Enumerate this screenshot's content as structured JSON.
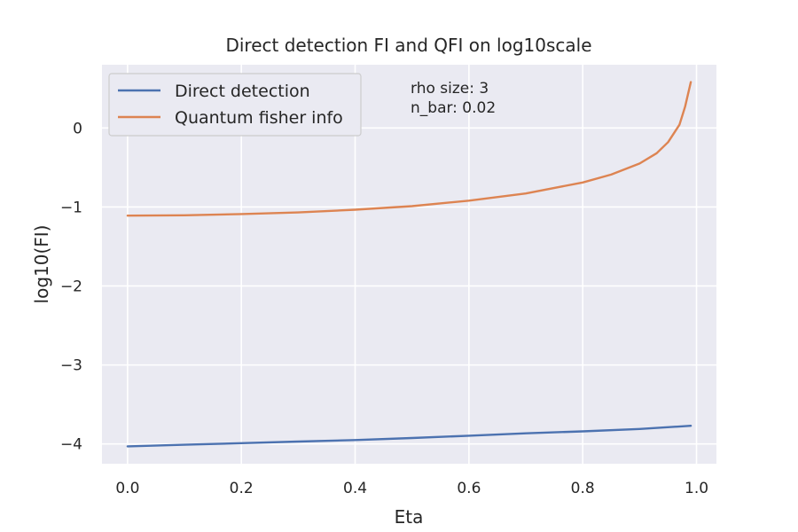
{
  "chart_data": {
    "type": "line",
    "title": "Direct detection FI and QFI on log10scale",
    "xlabel": "Eta",
    "ylabel": "log10(FI)",
    "xlim": [
      -0.045,
      1.035
    ],
    "ylim": [
      -4.25,
      0.8
    ],
    "x_ticks": [
      0.0,
      0.2,
      0.4,
      0.6,
      0.8,
      1.0
    ],
    "x_tick_labels": [
      "0.0",
      "0.2",
      "0.4",
      "0.6",
      "0.8",
      "1.0"
    ],
    "y_ticks": [
      0,
      -1,
      -2,
      -3,
      -4
    ],
    "y_tick_labels": [
      "0",
      "−1",
      "−2",
      "−3",
      "−4"
    ],
    "grid": true,
    "legend_position": "top-left",
    "background_color": "#eaeaf2",
    "annotations": [
      "rho size: 3",
      "n_bar: 0.02"
    ],
    "series": [
      {
        "name": "Direct detection",
        "color": "#4c72b0",
        "x": [
          0.0,
          0.1,
          0.2,
          0.3,
          0.4,
          0.5,
          0.6,
          0.7,
          0.8,
          0.9,
          0.99
        ],
        "y": [
          -4.03,
          -4.01,
          -3.99,
          -3.97,
          -3.95,
          -3.925,
          -3.895,
          -3.865,
          -3.84,
          -3.81,
          -3.77
        ]
      },
      {
        "name": "Quantum fisher info",
        "color": "#dd8452",
        "x": [
          0.0,
          0.1,
          0.2,
          0.3,
          0.4,
          0.5,
          0.6,
          0.7,
          0.8,
          0.85,
          0.9,
          0.93,
          0.95,
          0.97,
          0.98,
          0.99
        ],
        "y": [
          -1.11,
          -1.105,
          -1.09,
          -1.07,
          -1.035,
          -0.99,
          -0.92,
          -0.83,
          -0.69,
          -0.59,
          -0.45,
          -0.32,
          -0.18,
          0.04,
          0.27,
          0.58
        ]
      }
    ]
  }
}
